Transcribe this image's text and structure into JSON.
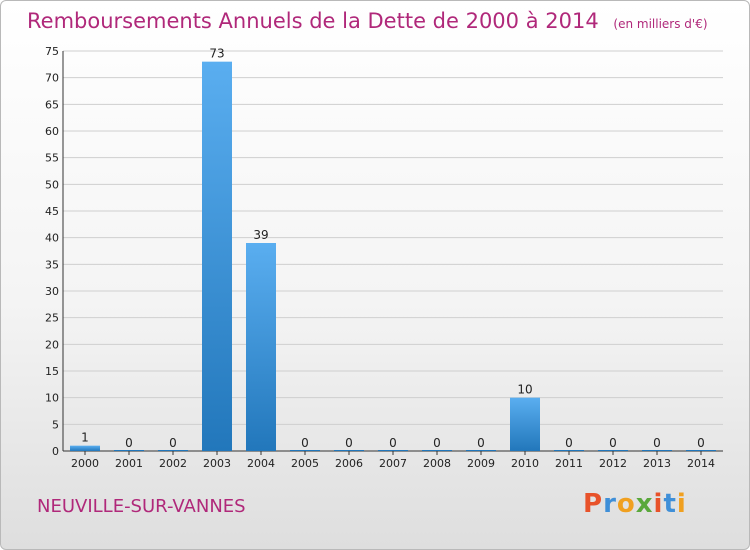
{
  "header": {
    "title": "Remboursements Annuels de la Dette de 2000 à 2014",
    "unit": "(en milliers d'€)"
  },
  "footer": {
    "commune": "NEUVILLE-SUR-VANNES",
    "logo": {
      "letters": [
        "P",
        "r",
        "o",
        "x",
        "i",
        "t",
        "i"
      ],
      "colors": [
        "#e8522a",
        "#3f8fd8",
        "#f0a020",
        "#5aa83c",
        "#e8522a",
        "#3f8fd8",
        "#f0a020"
      ]
    }
  },
  "colors": {
    "bar_top": "#5aaef0",
    "bar_bottom": "#2277bb",
    "grid": "#cfcfcf"
  },
  "chart_data": {
    "type": "bar",
    "title": "Remboursements Annuels de la Dette de 2000 à 2014",
    "subtitle": "(en milliers d'€)",
    "categories": [
      "2000",
      "2001",
      "2002",
      "2003",
      "2004",
      "2005",
      "2006",
      "2007",
      "2008",
      "2009",
      "2010",
      "2011",
      "2012",
      "2013",
      "2014"
    ],
    "values": [
      1,
      0,
      0,
      73,
      39,
      0,
      0,
      0,
      0,
      0,
      10,
      0,
      0,
      0,
      0
    ],
    "xlabel": "",
    "ylabel": "",
    "ylim": [
      0,
      75
    ],
    "yticks": [
      0,
      5,
      10,
      15,
      20,
      25,
      30,
      35,
      40,
      45,
      50,
      55,
      60,
      65,
      70,
      75
    ],
    "grid": true,
    "legend": "none"
  }
}
